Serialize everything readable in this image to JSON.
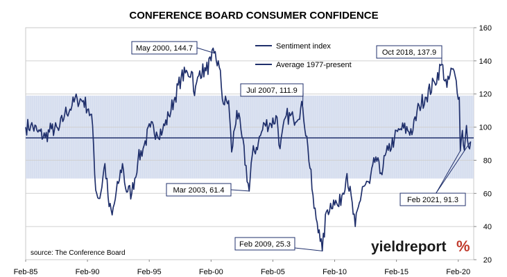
{
  "chart_data": {
    "type": "line",
    "title": "CONFERENCE BOARD CONSUMER CONFIDENCE",
    "xlabel": "",
    "ylabel": "",
    "x_ticks": [
      "Feb-85",
      "Feb-90",
      "Feb-95",
      "Feb-00",
      "Feb-05",
      "Feb-10",
      "Feb-15",
      "Feb-20"
    ],
    "y_ticks": [
      20,
      40,
      60,
      80,
      100,
      120,
      140,
      160
    ],
    "ylim": [
      20,
      160
    ],
    "xlim": [
      "1985-02",
      "2021-05"
    ],
    "y_axis_side": "right",
    "grid": "horizontal",
    "legend_position": "top-center",
    "series": [
      {
        "name": "Sentiment index",
        "color": "#1f2f6b",
        "points": [
          [
            "1985-02",
            100
          ],
          [
            "1985-07",
            101
          ],
          [
            "1986-02",
            97
          ],
          [
            "1986-09",
            94
          ],
          [
            "1987-03",
            99
          ],
          [
            "1987-10",
            98
          ],
          [
            "1988-04",
            108
          ],
          [
            "1988-11",
            113
          ],
          [
            "1989-04",
            117
          ],
          [
            "1989-10",
            116
          ],
          [
            "1990-03",
            111
          ],
          [
            "1990-07",
            101
          ],
          [
            "1990-10",
            62
          ],
          [
            "1991-02",
            57
          ],
          [
            "1991-07",
            78
          ],
          [
            "1991-11",
            52
          ],
          [
            "1992-02",
            47
          ],
          [
            "1992-08",
            66
          ],
          [
            "1992-12",
            78
          ],
          [
            "1993-03",
            63
          ],
          [
            "1993-09",
            60
          ],
          [
            "1994-03",
            80
          ],
          [
            "1994-09",
            89
          ],
          [
            "1995-03",
            100
          ],
          [
            "1995-09",
            97
          ],
          [
            "1996-03",
            98
          ],
          [
            "1996-09",
            107
          ],
          [
            "1997-03",
            118
          ],
          [
            "1997-09",
            130
          ],
          [
            "1998-03",
            133
          ],
          [
            "1998-08",
            133
          ],
          [
            "1998-10",
            119
          ],
          [
            "1999-03",
            134
          ],
          [
            "1999-09",
            134
          ],
          [
            "2000-02",
            140
          ],
          [
            "2000-05",
            144.7
          ],
          [
            "2000-10",
            136
          ],
          [
            "2001-02",
            114
          ],
          [
            "2001-07",
            116
          ],
          [
            "2001-10",
            85
          ],
          [
            "2002-03",
            110
          ],
          [
            "2002-08",
            94
          ],
          [
            "2003-03",
            61.4
          ],
          [
            "2003-06",
            83
          ],
          [
            "2003-12",
            91
          ],
          [
            "2004-06",
            102
          ],
          [
            "2004-12",
            102
          ],
          [
            "2005-06",
            106
          ],
          [
            "2005-09",
            87
          ],
          [
            "2006-03",
            107
          ],
          [
            "2006-10",
            105
          ],
          [
            "2007-07",
            111.9
          ],
          [
            "2007-12",
            88
          ],
          [
            "2008-06",
            51
          ],
          [
            "2008-11",
            38
          ],
          [
            "2009-02",
            25.3
          ],
          [
            "2009-06",
            49
          ],
          [
            "2010-01",
            56
          ],
          [
            "2010-06",
            52
          ],
          [
            "2011-02",
            72
          ],
          [
            "2011-10",
            40
          ],
          [
            "2012-05",
            64
          ],
          [
            "2012-12",
            66
          ],
          [
            "2013-06",
            82
          ],
          [
            "2013-10",
            72
          ],
          [
            "2014-06",
            86
          ],
          [
            "2014-12",
            93
          ],
          [
            "2015-06",
            99
          ],
          [
            "2016-06",
            98
          ],
          [
            "2016-12",
            113
          ],
          [
            "2017-06",
            118
          ],
          [
            "2018-03",
            127
          ],
          [
            "2018-10",
            137.9
          ],
          [
            "2019-03",
            124
          ],
          [
            "2019-08",
            135
          ],
          [
            "2019-12",
            128
          ],
          [
            "2020-03",
            118
          ],
          [
            "2020-04",
            85.7
          ],
          [
            "2020-06",
            98
          ],
          [
            "2020-08",
            86
          ],
          [
            "2020-10",
            101
          ],
          [
            "2020-12",
            88
          ],
          [
            "2021-02",
            91.3
          ]
        ]
      },
      {
        "name": "Average 1977-present",
        "color": "#1f2f6b",
        "value": 93.5
      }
    ],
    "band": {
      "from": 69,
      "to": 119,
      "color": "#d4dcee"
    },
    "annotations": [
      {
        "text": "May 2000, 144.7",
        "date": "2000-05",
        "value": 144.7
      },
      {
        "text": "Mar 2003, 61.4",
        "date": "2003-03",
        "value": 61.4
      },
      {
        "text": "Jul 2007, 111.9",
        "date": "2007-07",
        "value": 111.9
      },
      {
        "text": "Feb 2009, 25.3",
        "date": "2009-02",
        "value": 25.3
      },
      {
        "text": "Oct 2018, 137.9",
        "date": "2018-10",
        "value": 137.9
      },
      {
        "text": "Feb 2021, 91.3",
        "date": "2021-02",
        "value": 91.3
      }
    ]
  },
  "source_note": "source: The Conference Board",
  "brand": {
    "text": "yieldreport",
    "symbol": "%",
    "symbol_color": "#c0392b"
  }
}
